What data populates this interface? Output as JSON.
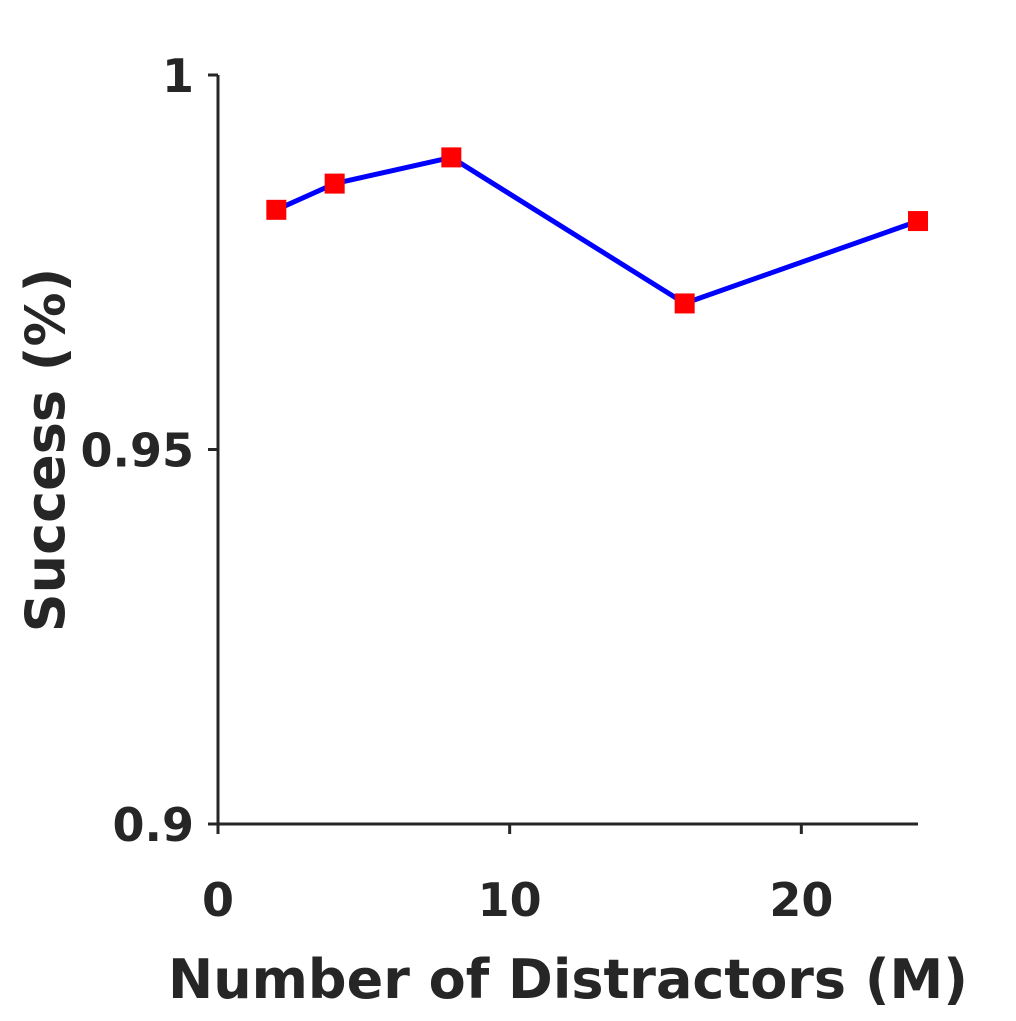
{
  "chart_data": {
    "type": "line",
    "title": "",
    "xlabel": "Number of Distractors (M)",
    "ylabel": "Success (%)",
    "xlim": [
      0,
      24
    ],
    "ylim": [
      0.9,
      1
    ],
    "x_ticks": [
      0,
      10,
      20
    ],
    "x_tick_labels": [
      "0",
      "10",
      "20"
    ],
    "y_ticks": [
      0.9,
      0.95,
      1
    ],
    "y_tick_labels": [
      "0.9",
      "0.95",
      "1"
    ],
    "grid": false,
    "series": [
      {
        "x": [
          2,
          4,
          8,
          16,
          24
        ],
        "y": [
          0.982,
          0.9855,
          0.989,
          0.9695,
          0.9805
        ],
        "line_color": "#0000ff",
        "marker": "square",
        "marker_color": "#ff0000"
      }
    ]
  }
}
